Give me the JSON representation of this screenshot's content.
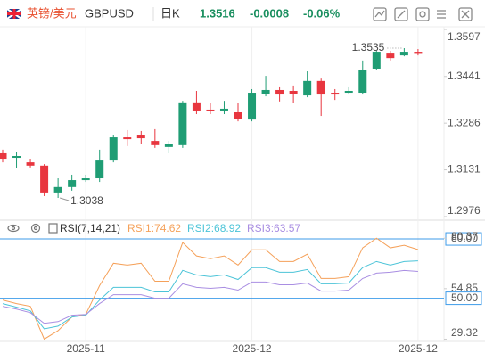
{
  "header": {
    "name": "英镑/美元",
    "symbol": "GBPUSD",
    "period": "日K",
    "price": "1.3516",
    "change": "-0.0008",
    "change_percent": "-0.06%"
  },
  "chart_data": [
    {
      "type": "candlestick",
      "categories": [
        null,
        null,
        null,
        null,
        null,
        null,
        "2025-11",
        null,
        null,
        null,
        null,
        null,
        null,
        null,
        null,
        null,
        null,
        null,
        "2025-12",
        null,
        null,
        null,
        null,
        null,
        null,
        null,
        null,
        null,
        null,
        null,
        "2025-12"
      ],
      "open": [
        1.3186,
        1.3171,
        1.3156,
        1.3145,
        1.3056,
        1.3074,
        1.3097,
        1.3103,
        1.3162,
        1.3239,
        1.3245,
        1.3227,
        1.3207,
        1.3213,
        1.3355,
        1.3331,
        1.3328,
        1.3322,
        1.3298,
        1.3384,
        1.3396,
        1.3393,
        1.3378,
        1.3426,
        1.3387,
        1.3387,
        1.3387,
        1.3467,
        1.3517,
        1.3511,
        1.3523
      ],
      "high": [
        1.3198,
        1.3189,
        1.3168,
        1.315,
        1.3103,
        1.3115,
        1.3115,
        1.3198,
        1.3245,
        1.3263,
        1.326,
        1.3266,
        1.3227,
        1.336,
        1.3393,
        1.3352,
        1.336,
        1.3352,
        1.3399,
        1.3443,
        1.3405,
        1.3411,
        1.3458,
        1.3434,
        1.3399,
        1.3405,
        1.3494,
        1.3526,
        1.3526,
        1.3535,
        1.3532
      ],
      "low": [
        1.3156,
        1.3136,
        1.3139,
        1.3044,
        1.3038,
        1.3062,
        1.3091,
        1.3091,
        1.3156,
        1.321,
        1.3216,
        1.3204,
        1.3186,
        1.3204,
        1.3316,
        1.3316,
        1.3316,
        1.3292,
        1.3292,
        1.3375,
        1.3358,
        1.3352,
        1.3372,
        1.331,
        1.3363,
        1.3381,
        1.3381,
        1.3461,
        1.3494,
        1.3508,
        1.3511
      ],
      "close": [
        1.3168,
        1.3177,
        1.3145,
        1.3056,
        1.3074,
        1.3097,
        1.3103,
        1.3162,
        1.3239,
        1.3233,
        1.3236,
        1.3213,
        1.3216,
        1.3355,
        1.3328,
        1.3325,
        1.3334,
        1.3301,
        1.3387,
        1.3396,
        1.3381,
        1.3384,
        1.3426,
        1.3381,
        1.3381,
        1.3393,
        1.3464,
        1.3523,
        1.3502,
        1.3523,
        1.3516
      ],
      "up_color": "#1f9d74",
      "down_color": "#e8363f",
      "ylim": [
        1.2964,
        1.3606
      ],
      "yticks": [
        1.2976,
        1.3131,
        1.3286,
        1.3441,
        1.3597
      ]
    },
    {
      "type": "line",
      "title": "RSI(7,14,21)",
      "legend_separator": ":",
      "series": [
        {
          "name": "RSI1",
          "color": "#f5a15a",
          "values": [
            49.1,
            47.3,
            45.9,
            29.32,
            33.6,
            40.5,
            41.8,
            56.4,
            67.7,
            66.8,
            67.7,
            58.6,
            58.6,
            78.2,
            71.4,
            70.0,
            71.4,
            66.8,
            74.5,
            74.5,
            68.6,
            68.6,
            72.3,
            60.0,
            60.0,
            60.9,
            75.5,
            80.37,
            75.5,
            76.8,
            74.62
          ]
        },
        {
          "name": "RSI2",
          "color": "#4cc4d8",
          "values": [
            47.3,
            45.5,
            43.6,
            34.5,
            35.9,
            40.5,
            41.4,
            49.1,
            55.5,
            55.5,
            55.5,
            53.2,
            53.2,
            64.1,
            61.8,
            60.9,
            61.8,
            59.5,
            65.5,
            65.5,
            63.2,
            63.2,
            64.5,
            57.3,
            57.3,
            57.7,
            65.5,
            68.6,
            66.8,
            68.6,
            68.92
          ]
        },
        {
          "name": "RSI3",
          "color": "#a98ee2",
          "values": [
            45.9,
            44.5,
            42.7,
            37.3,
            38.2,
            41.4,
            41.8,
            47.3,
            51.8,
            51.8,
            51.8,
            50.0,
            50.0,
            57.3,
            55.5,
            55.0,
            55.5,
            54.1,
            58.2,
            58.2,
            56.8,
            56.8,
            57.7,
            53.6,
            53.6,
            54.1,
            60.0,
            62.7,
            63.2,
            64.1,
            63.57
          ]
        }
      ],
      "ylim": [
        28.18,
        82.73
      ],
      "yticks": [
        29.32,
        54.85,
        80.37
      ],
      "hlines": [
        {
          "value": 80,
          "label": "80.00"
        },
        {
          "value": 50,
          "label": "50.00"
        }
      ],
      "hline_color": "#3d9be9"
    }
  ]
}
